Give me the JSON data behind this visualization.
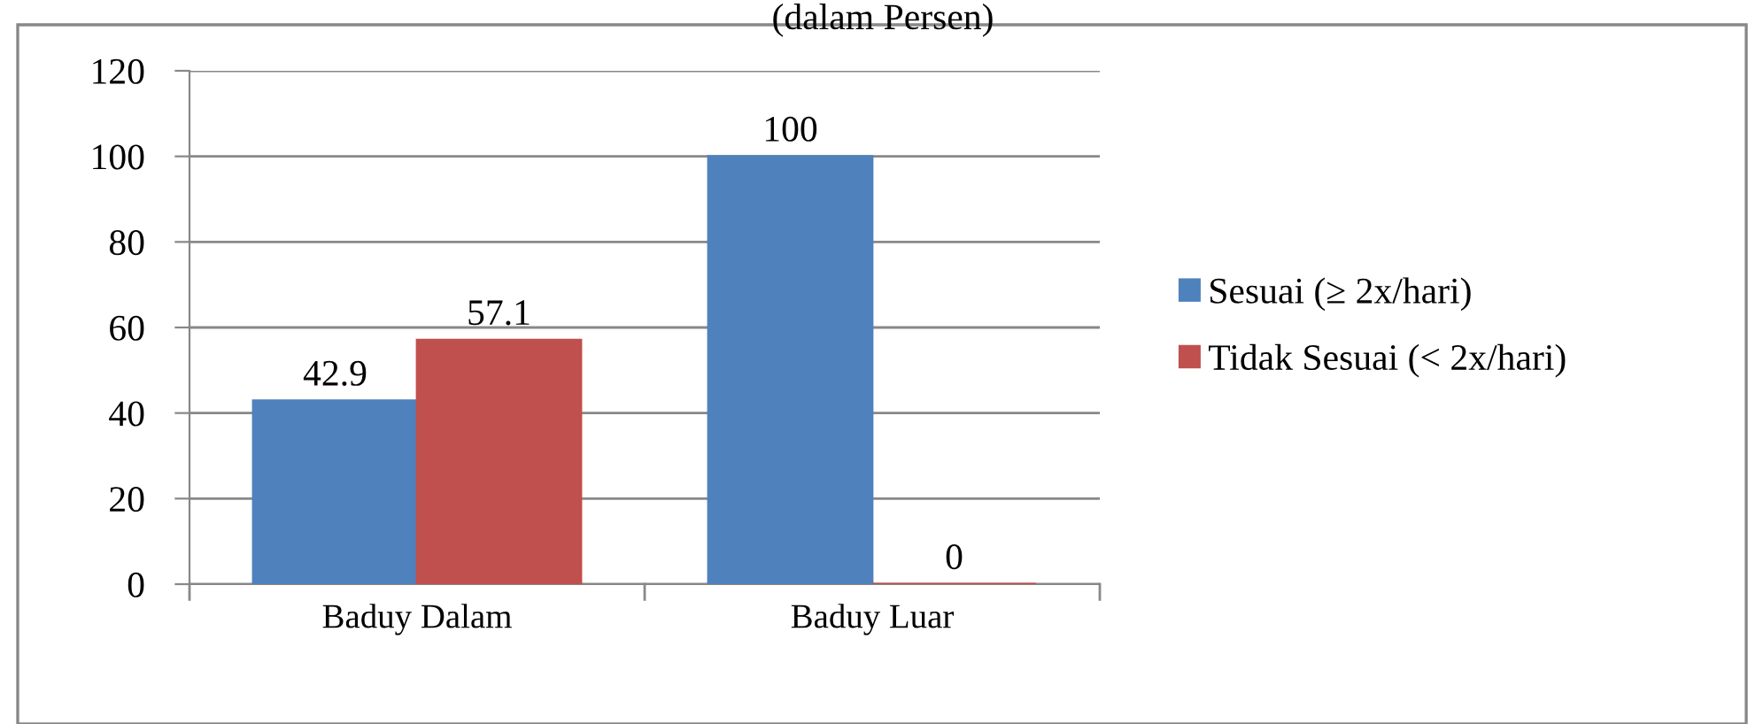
{
  "chart_data": {
    "type": "bar",
    "title": "(dalam Persen)",
    "categories": [
      "Baduy Dalam",
      "Baduy Luar"
    ],
    "series": [
      {
        "name": "Sesuai (≥ 2x/hari)",
        "color": "#4f81bd",
        "values": [
          42.9,
          100
        ]
      },
      {
        "name": "Tidak Sesuai (< 2x/hari)",
        "color": "#c0504d",
        "values": [
          57.1,
          0
        ]
      }
    ],
    "ylim": [
      0,
      120
    ],
    "yticks": [
      0,
      20,
      40,
      60,
      80,
      100,
      120
    ],
    "grid": "y",
    "legend": "right",
    "data_labels": true
  }
}
